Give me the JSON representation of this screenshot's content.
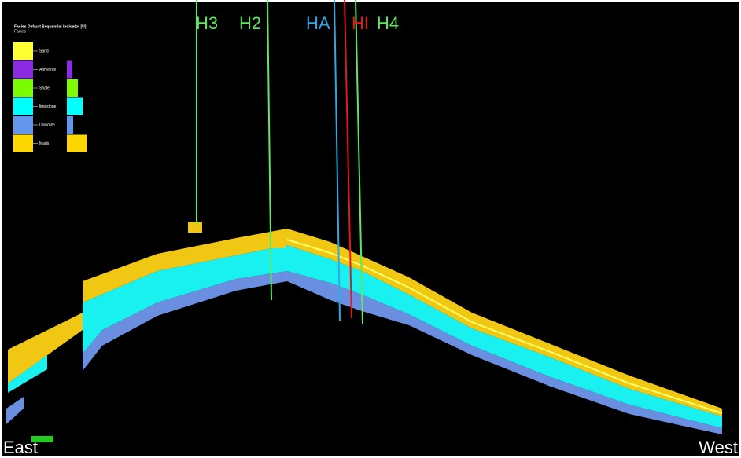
{
  "legend": {
    "title": "Facies Default Sequential indicator [U]",
    "subtitle": "Facies",
    "items": [
      {
        "label": "Sand",
        "color": "#ffff33"
      },
      {
        "label": "Anhydrite",
        "color": "#8a2be2"
      },
      {
        "label": "Shale",
        "color": "#7cfc00"
      },
      {
        "label": "limestone",
        "color": "#00ffff"
      },
      {
        "label": "Dolomite",
        "color": "#6495ed"
      },
      {
        "label": "Marls",
        "color": "#ffd700"
      }
    ]
  },
  "wells": [
    {
      "label": "H3",
      "color": "#5ee85e"
    },
    {
      "label": "H2",
      "color": "#5ee85e"
    },
    {
      "label": "HA",
      "color": "#2ea8e8"
    },
    {
      "label": "HI",
      "color": "#e81818"
    },
    {
      "label": "H4",
      "color": "#5ee85e"
    }
  ],
  "directions": {
    "east": "East",
    "west": "West"
  }
}
